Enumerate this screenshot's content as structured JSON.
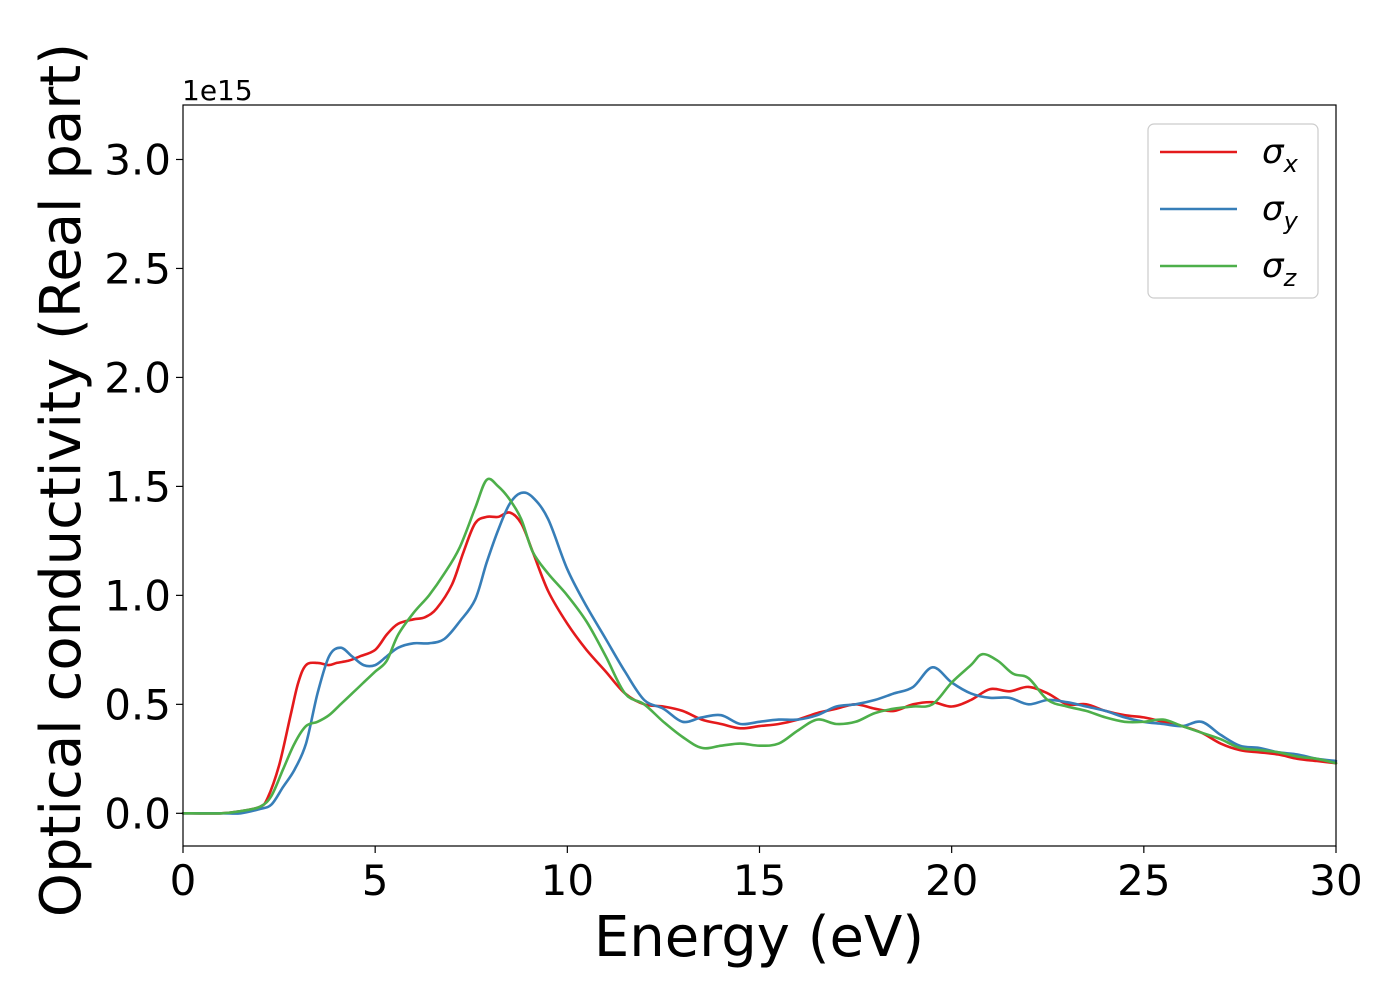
{
  "chart_data": {
    "type": "line",
    "xlabel": "Energy (eV)",
    "ylabel": "Optical conductivity (Real part)",
    "y_offset_label": "1e15",
    "xlim": [
      0,
      30
    ],
    "ylim": [
      -0.15,
      3.25
    ],
    "xticks": [
      0,
      5,
      10,
      15,
      20,
      25,
      30
    ],
    "yticks": [
      0.0,
      0.5,
      1.0,
      1.5,
      2.0,
      2.5,
      3.0
    ],
    "xtick_labels": [
      "0",
      "5",
      "10",
      "15",
      "20",
      "25",
      "30"
    ],
    "ytick_labels": [
      "0.0",
      "0.5",
      "1.0",
      "1.5",
      "2.0",
      "2.5",
      "3.0"
    ],
    "grid": false,
    "legend_position": "top-right",
    "series": [
      {
        "name": "σx",
        "symbol": "σ",
        "subscript": "x",
        "color": "#e41a1c",
        "x": [
          0,
          1,
          1.5,
          2,
          2.2,
          2.5,
          2.8,
          3.0,
          3.2,
          3.5,
          3.8,
          4.0,
          4.3,
          4.6,
          5.0,
          5.3,
          5.6,
          6.0,
          6.3,
          6.6,
          7.0,
          7.3,
          7.6,
          7.9,
          8.2,
          8.5,
          8.8,
          9.1,
          9.5,
          10.0,
          10.5,
          11.0,
          11.5,
          12.0,
          12.5,
          13.0,
          13.5,
          14.0,
          14.5,
          15.0,
          15.5,
          16.0,
          16.5,
          17.0,
          17.5,
          18.0,
          18.5,
          19.0,
          19.5,
          20.0,
          20.5,
          21.0,
          21.5,
          22.0,
          22.5,
          23.0,
          23.5,
          24.0,
          24.5,
          25.0,
          25.5,
          26.0,
          26.5,
          27.0,
          27.5,
          28.0,
          28.5,
          29.0,
          29.5,
          30.0
        ],
        "y": [
          0.0,
          0.0,
          0.01,
          0.03,
          0.07,
          0.22,
          0.45,
          0.6,
          0.68,
          0.69,
          0.68,
          0.69,
          0.7,
          0.72,
          0.75,
          0.82,
          0.87,
          0.89,
          0.9,
          0.94,
          1.05,
          1.2,
          1.33,
          1.36,
          1.36,
          1.38,
          1.33,
          1.2,
          1.02,
          0.87,
          0.75,
          0.65,
          0.55,
          0.5,
          0.49,
          0.47,
          0.43,
          0.41,
          0.39,
          0.4,
          0.41,
          0.43,
          0.46,
          0.48,
          0.5,
          0.48,
          0.47,
          0.5,
          0.51,
          0.49,
          0.52,
          0.57,
          0.56,
          0.58,
          0.55,
          0.5,
          0.5,
          0.47,
          0.45,
          0.44,
          0.42,
          0.4,
          0.37,
          0.32,
          0.29,
          0.28,
          0.27,
          0.25,
          0.24,
          0.23
        ]
      },
      {
        "name": "σy",
        "symbol": "σ",
        "subscript": "y",
        "color": "#377eb8",
        "x": [
          0,
          1,
          1.5,
          2,
          2.3,
          2.6,
          2.9,
          3.2,
          3.5,
          3.8,
          4.1,
          4.4,
          4.7,
          5.0,
          5.3,
          5.6,
          6.0,
          6.4,
          6.8,
          7.2,
          7.6,
          7.9,
          8.2,
          8.5,
          8.8,
          9.1,
          9.5,
          10.0,
          10.5,
          11.0,
          11.5,
          12.0,
          12.5,
          13.0,
          13.5,
          14.0,
          14.5,
          15.0,
          15.5,
          16.0,
          16.5,
          17.0,
          17.5,
          18.0,
          18.5,
          19.0,
          19.5,
          20.0,
          20.5,
          21.0,
          21.5,
          22.0,
          22.5,
          23.0,
          23.5,
          24.0,
          24.5,
          25.0,
          25.5,
          26.0,
          26.5,
          27.0,
          27.5,
          28.0,
          28.5,
          29.0,
          29.5,
          30.0
        ],
        "y": [
          0.0,
          0.0,
          0.0,
          0.02,
          0.04,
          0.12,
          0.2,
          0.32,
          0.55,
          0.72,
          0.76,
          0.72,
          0.68,
          0.68,
          0.72,
          0.76,
          0.78,
          0.78,
          0.8,
          0.88,
          0.98,
          1.15,
          1.3,
          1.42,
          1.47,
          1.45,
          1.35,
          1.12,
          0.95,
          0.8,
          0.65,
          0.52,
          0.48,
          0.42,
          0.44,
          0.45,
          0.41,
          0.42,
          0.43,
          0.43,
          0.45,
          0.49,
          0.5,
          0.52,
          0.55,
          0.58,
          0.67,
          0.6,
          0.55,
          0.53,
          0.53,
          0.5,
          0.52,
          0.51,
          0.49,
          0.47,
          0.44,
          0.42,
          0.41,
          0.4,
          0.42,
          0.36,
          0.31,
          0.3,
          0.28,
          0.27,
          0.25,
          0.24
        ]
      },
      {
        "name": "σz",
        "symbol": "σ",
        "subscript": "z",
        "color": "#4daf4a",
        "x": [
          0,
          1,
          1.5,
          2,
          2.3,
          2.6,
          2.9,
          3.2,
          3.5,
          3.8,
          4.1,
          4.4,
          4.7,
          5.0,
          5.3,
          5.6,
          6.0,
          6.4,
          6.8,
          7.2,
          7.6,
          7.9,
          8.2,
          8.5,
          8.8,
          9.1,
          9.5,
          10.0,
          10.5,
          11.0,
          11.5,
          12.0,
          12.5,
          13.0,
          13.5,
          14.0,
          14.5,
          15.0,
          15.5,
          16.0,
          16.5,
          17.0,
          17.5,
          18.0,
          18.5,
          19.0,
          19.5,
          20.0,
          20.5,
          20.8,
          21.2,
          21.6,
          22.0,
          22.5,
          23.0,
          23.5,
          24.0,
          24.5,
          25.0,
          25.5,
          26.0,
          26.5,
          27.0,
          27.5,
          28.0,
          28.5,
          29.0,
          29.5,
          30.0
        ],
        "y": [
          0.0,
          0.0,
          0.01,
          0.03,
          0.08,
          0.2,
          0.32,
          0.4,
          0.42,
          0.45,
          0.5,
          0.55,
          0.6,
          0.65,
          0.7,
          0.82,
          0.92,
          1.0,
          1.1,
          1.22,
          1.4,
          1.53,
          1.5,
          1.44,
          1.35,
          1.2,
          1.1,
          1.0,
          0.88,
          0.72,
          0.55,
          0.5,
          0.42,
          0.35,
          0.3,
          0.31,
          0.32,
          0.31,
          0.32,
          0.38,
          0.43,
          0.41,
          0.42,
          0.46,
          0.48,
          0.49,
          0.5,
          0.6,
          0.68,
          0.73,
          0.7,
          0.64,
          0.62,
          0.52,
          0.49,
          0.47,
          0.44,
          0.42,
          0.42,
          0.43,
          0.4,
          0.37,
          0.34,
          0.3,
          0.29,
          0.28,
          0.26,
          0.25,
          0.23
        ]
      }
    ]
  }
}
